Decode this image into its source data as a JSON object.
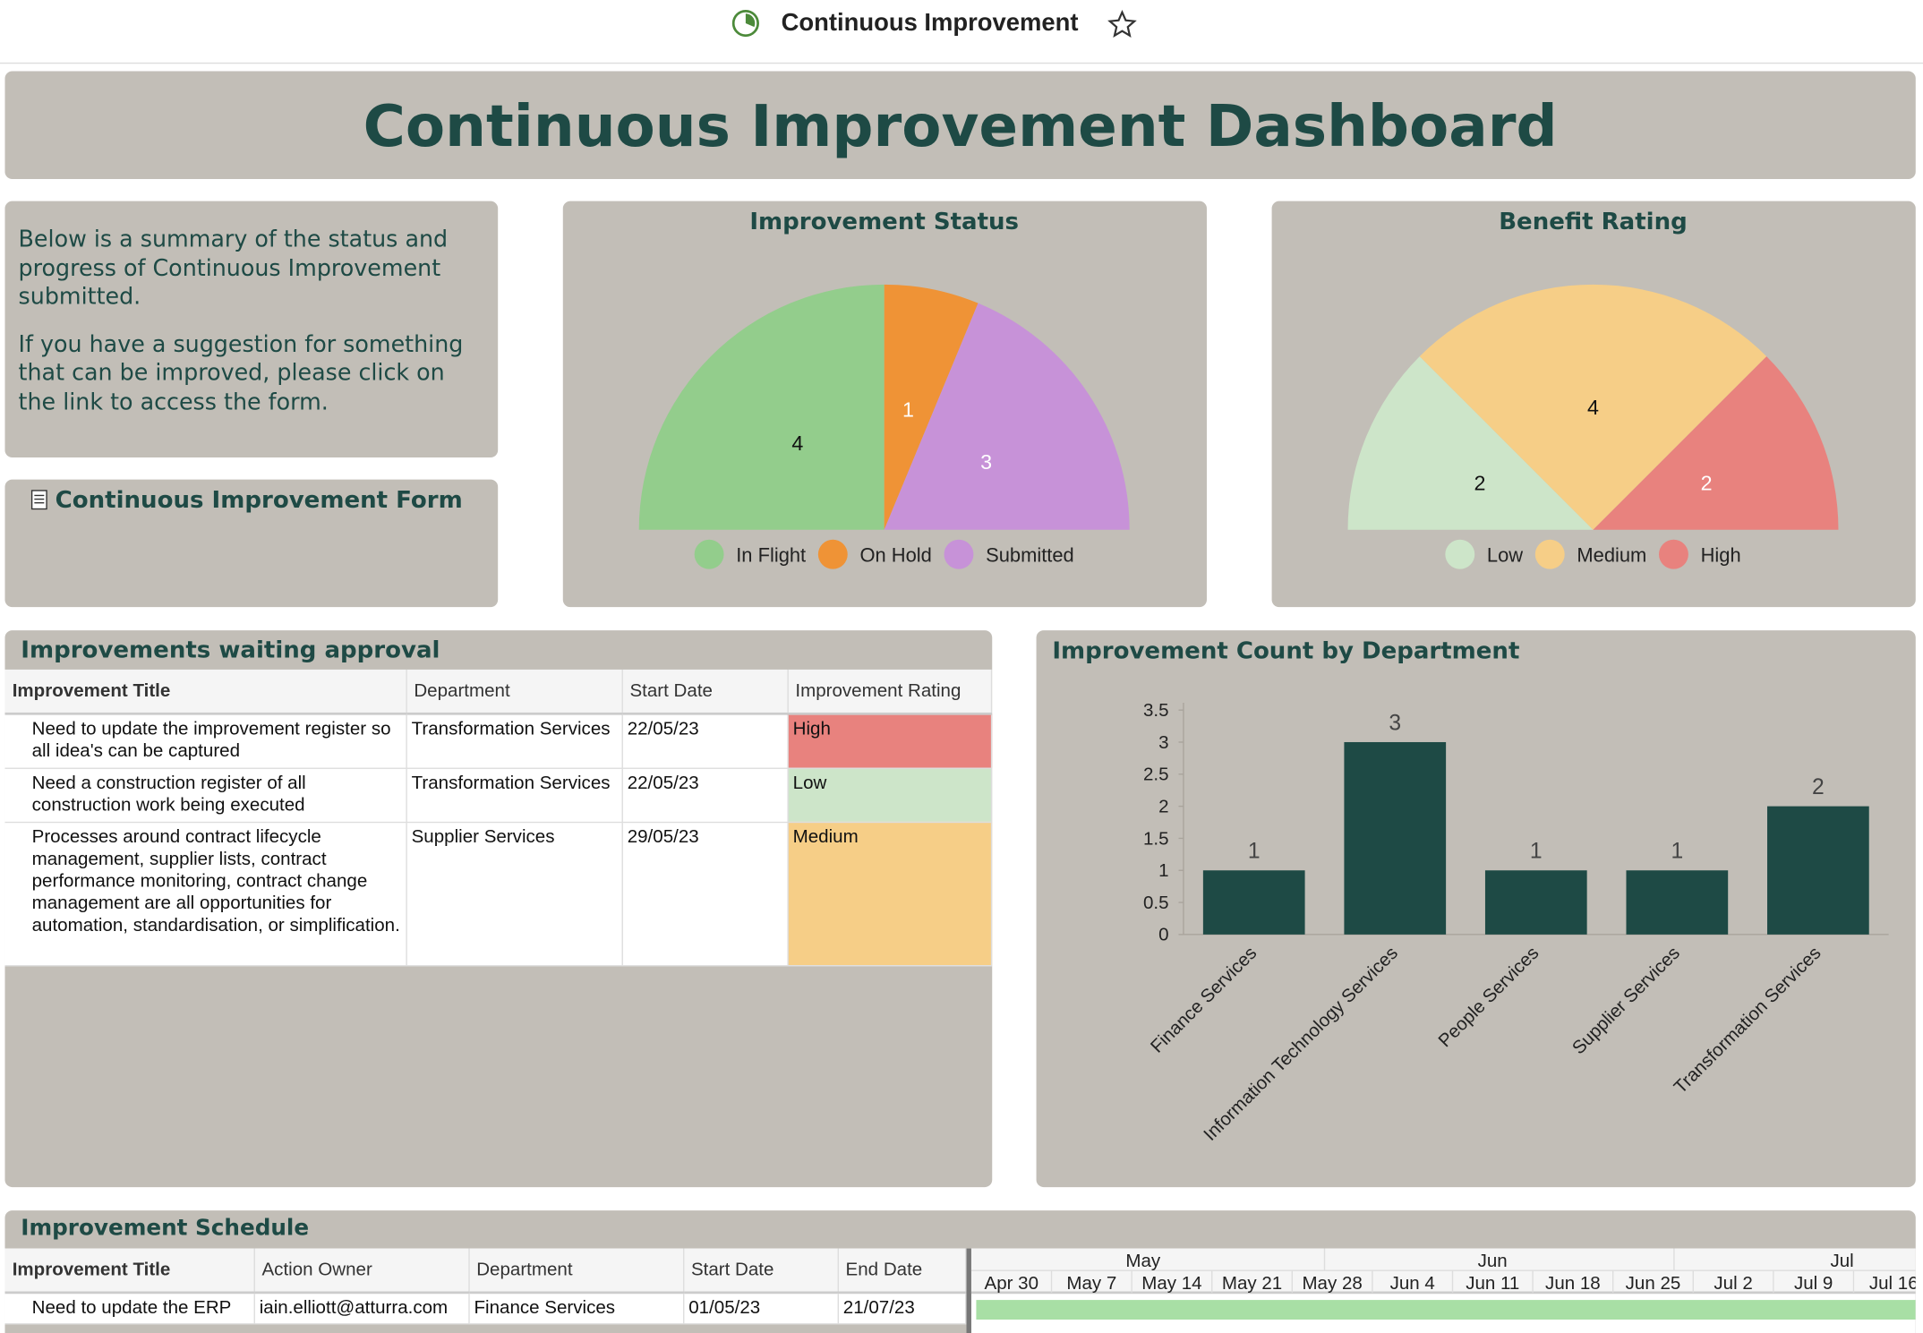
{
  "topbar": {
    "title": "Continuous Improvement"
  },
  "header": {
    "title": "Continuous Improvement Dashboard"
  },
  "intro": {
    "paragraphs": [
      "Below is a summary of the status and progress of Continuous Improvement submitted.",
      "If you have a suggestion for something that can be improved, please click on the link to access the form."
    ]
  },
  "form_link": {
    "label": "Continuous Improvement Form"
  },
  "status_chart": {
    "type": "pie",
    "title": "Improvement Status",
    "half": true,
    "categories": [
      "In Flight",
      "On Hold",
      "Submitted"
    ],
    "values": [
      4,
      1,
      3
    ],
    "colors": [
      "#93cd8c",
      "#ef9336",
      "#c792d8"
    ]
  },
  "benefit_chart": {
    "type": "pie",
    "title": "Benefit Rating",
    "half": true,
    "categories": [
      "Low",
      "Medium",
      "High"
    ],
    "values": [
      2,
      4,
      2
    ],
    "colors": [
      "#cde5c9",
      "#f6ce87",
      "#e8827e"
    ]
  },
  "approval_table": {
    "title": "Improvements waiting approval",
    "columns": [
      "Improvement Title",
      "Department",
      "Start Date",
      "Improvement Rating"
    ],
    "rows": [
      [
        "Need to update the improvement register so all idea's can be captured",
        "Transformation Services",
        "22/05/23",
        "High"
      ],
      [
        "Need a construction register of all construction work being executed",
        "Transformation Services",
        "22/05/23",
        "Low"
      ],
      [
        "Processes around contract lifecycle management, supplier lists, contract performance monitoring, contract change management are all opportunities for automation, standardisation, or simplification.",
        "Supplier Services",
        "29/05/23",
        "Medium"
      ]
    ]
  },
  "dept_chart": {
    "type": "bar",
    "title": "Improvement Count by Department",
    "categories": [
      "Finance Services",
      "Information Technology Services",
      "People Services",
      "Supplier Services",
      "Transformation Services"
    ],
    "values": [
      1,
      3,
      1,
      1,
      2
    ],
    "color": "#1e4a45",
    "ylim": [
      0,
      3.5
    ],
    "yticks": [
      0,
      0.5,
      1,
      1.5,
      2,
      2.5,
      3,
      3.5
    ]
  },
  "schedule": {
    "title": "Improvement Schedule",
    "columns": [
      "Improvement Title",
      "Action Owner",
      "Department",
      "Start Date",
      "End Date"
    ],
    "rows": [
      [
        "Need to update the ERP",
        "iain.elliott@atturra.com",
        "Finance Services",
        "01/05/23",
        "21/07/23"
      ]
    ],
    "months": [
      "May",
      "Jun",
      "Jul"
    ],
    "weeks": [
      "Apr 30",
      "May 7",
      "May 14",
      "May 21",
      "May 28",
      "Jun 4",
      "Jun 11",
      "Jun 18",
      "Jun 25",
      "Jul 2",
      "Jul 9",
      "Jul 16"
    ]
  }
}
